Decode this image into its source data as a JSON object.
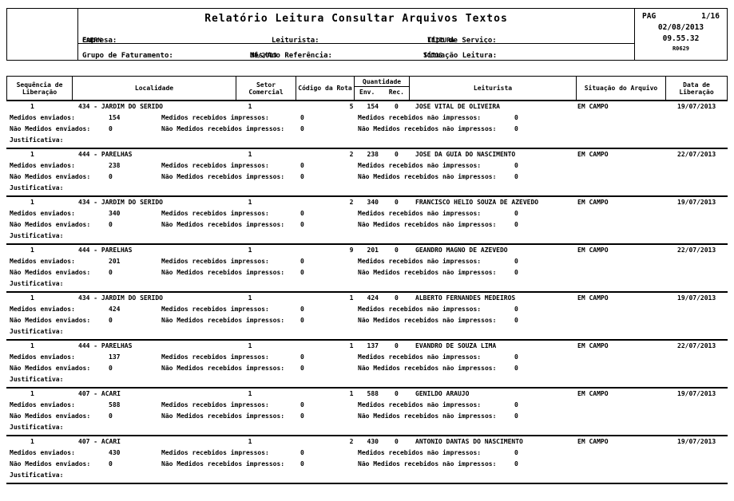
{
  "colors": {
    "ink": "#000000",
    "paper": "#ffffff"
  },
  "header": {
    "title": "Relatório Leitura Consultar Arquivos Textos",
    "empresa_label": "Empresa:",
    "empresa_value": "CAERN",
    "leiturista_label": "Leiturista:",
    "leiturista_value": "",
    "tipo_servico_label": "Tipo de Serviço:",
    "tipo_servico_value": "LEITURA",
    "grupo_faturamento_label": "Grupo de Faturamento:",
    "grupo_faturamento_value": "",
    "mes_ano_label": "Mês/Ano Referência:",
    "mes_ano_value": "08/2013",
    "situacao_leitura_label": "Situação Leitura:",
    "situacao_leitura_value": "TODOS",
    "page_label": "PAG",
    "page_value": "1/16",
    "date": "02/08/2013",
    "time": "09.55.32",
    "report_code": "R0629"
  },
  "table": {
    "columns": {
      "seq": "Sequência de Liberação",
      "localidade": "Localidade",
      "setor": "Setor Comercial",
      "rota": "Código da Rota",
      "quantidade": "Quantidade",
      "env": "Env.",
      "rec": "Rec.",
      "leiturista": "Leiturista",
      "situacao": "Situação do Arquivo",
      "data": "Data de Liberação"
    },
    "detail_labels": {
      "medidos_enviados": "Medidos enviados:",
      "medidos_recebidos_impressos": "Medidos recebidos impressos:",
      "medidos_recebidos_nao_impressos": "Medidos recebidos não impressos:",
      "nao_medidos_enviados": "Não Medidos enviados:",
      "nao_medidos_recebidos_impressos": "Não Medidos recebidos impressos:",
      "nao_medidos_recebidos_nao_impressos": "Não Medidos recebidos não impressos:",
      "justificativa": "Justificativa:"
    },
    "groups": [
      {
        "seq": "1",
        "localidade": "434 - JARDIM DO SERIDO",
        "setor": "1",
        "rota": "5",
        "env": "154",
        "rec": "0",
        "leiturista": "JOSE VITAL DE OLIVEIRA",
        "situacao_arquivo": "EM CAMPO",
        "data_liberacao": "19/07/2013",
        "medidos_enviados": "154",
        "medidos_recebidos_impressos": "0",
        "medidos_recebidos_nao_impressos": "0",
        "nao_medidos_enviados": "0",
        "nao_medidos_recebidos_impressos": "0",
        "nao_medidos_recebidos_nao_impressos": "0",
        "justificativa": ""
      },
      {
        "seq": "1",
        "localidade": "444 - PARELHAS",
        "setor": "1",
        "rota": "2",
        "env": "238",
        "rec": "0",
        "leiturista": "JOSE DA GUIA DO NASCIMENTO",
        "situacao_arquivo": "EM CAMPO",
        "data_liberacao": "22/07/2013",
        "medidos_enviados": "238",
        "medidos_recebidos_impressos": "0",
        "medidos_recebidos_nao_impressos": "0",
        "nao_medidos_enviados": "0",
        "nao_medidos_recebidos_impressos": "0",
        "nao_medidos_recebidos_nao_impressos": "0",
        "justificativa": ""
      },
      {
        "seq": "1",
        "localidade": "434 - JARDIM DO SERIDO",
        "setor": "1",
        "rota": "2",
        "env": "340",
        "rec": "0",
        "leiturista": "FRANCISCO HELIO SOUZA DE AZEVEDO",
        "situacao_arquivo": "EM CAMPO",
        "data_liberacao": "19/07/2013",
        "medidos_enviados": "340",
        "medidos_recebidos_impressos": "0",
        "medidos_recebidos_nao_impressos": "0",
        "nao_medidos_enviados": "0",
        "nao_medidos_recebidos_impressos": "0",
        "nao_medidos_recebidos_nao_impressos": "0",
        "justificativa": ""
      },
      {
        "seq": "1",
        "localidade": "444 - PARELHAS",
        "setor": "1",
        "rota": "9",
        "env": "201",
        "rec": "0",
        "leiturista": "GEANDRO MAGNO DE AZEVEDO",
        "situacao_arquivo": "EM CAMPO",
        "data_liberacao": "22/07/2013",
        "medidos_enviados": "201",
        "medidos_recebidos_impressos": "0",
        "medidos_recebidos_nao_impressos": "0",
        "nao_medidos_enviados": "0",
        "nao_medidos_recebidos_impressos": "0",
        "nao_medidos_recebidos_nao_impressos": "0",
        "justificativa": ""
      },
      {
        "seq": "1",
        "localidade": "434 - JARDIM DO SERIDO",
        "setor": "1",
        "rota": "1",
        "env": "424",
        "rec": "0",
        "leiturista": "ALBERTO FERNANDES MEDEIROS",
        "situacao_arquivo": "EM CAMPO",
        "data_liberacao": "19/07/2013",
        "medidos_enviados": "424",
        "medidos_recebidos_impressos": "0",
        "medidos_recebidos_nao_impressos": "0",
        "nao_medidos_enviados": "0",
        "nao_medidos_recebidos_impressos": "0",
        "nao_medidos_recebidos_nao_impressos": "0",
        "justificativa": ""
      },
      {
        "seq": "1",
        "localidade": "444 - PARELHAS",
        "setor": "1",
        "rota": "1",
        "env": "137",
        "rec": "0",
        "leiturista": "EVANDRO DE SOUZA LIMA",
        "situacao_arquivo": "EM CAMPO",
        "data_liberacao": "22/07/2013",
        "medidos_enviados": "137",
        "medidos_recebidos_impressos": "0",
        "medidos_recebidos_nao_impressos": "0",
        "nao_medidos_enviados": "0",
        "nao_medidos_recebidos_impressos": "0",
        "nao_medidos_recebidos_nao_impressos": "0",
        "justificativa": ""
      },
      {
        "seq": "1",
        "localidade": "407 - ACARI",
        "setor": "1",
        "rota": "1",
        "env": "588",
        "rec": "0",
        "leiturista": "GENILDO ARAUJO",
        "situacao_arquivo": "EM CAMPO",
        "data_liberacao": "19/07/2013",
        "medidos_enviados": "588",
        "medidos_recebidos_impressos": "0",
        "medidos_recebidos_nao_impressos": "0",
        "nao_medidos_enviados": "0",
        "nao_medidos_recebidos_impressos": "0",
        "nao_medidos_recebidos_nao_impressos": "0",
        "justificativa": ""
      },
      {
        "seq": "1",
        "localidade": "407 - ACARI",
        "setor": "1",
        "rota": "2",
        "env": "430",
        "rec": "0",
        "leiturista": "ANTONIO DANTAS DO NASCIMENTO",
        "situacao_arquivo": "EM CAMPO",
        "data_liberacao": "19/07/2013",
        "medidos_enviados": "430",
        "medidos_recebidos_impressos": "0",
        "medidos_recebidos_nao_impressos": "0",
        "nao_medidos_enviados": "0",
        "nao_medidos_recebidos_impressos": "0",
        "nao_medidos_recebidos_nao_impressos": "0",
        "justificativa": ""
      }
    ]
  }
}
